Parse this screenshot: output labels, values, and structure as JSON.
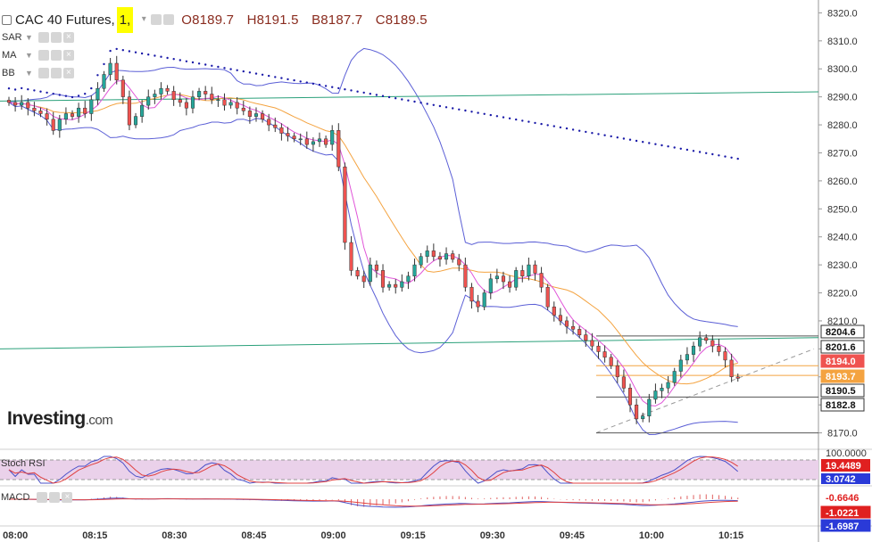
{
  "header": {
    "symbol": "CAC 40 Futures,",
    "timeframe": "1,",
    "open": "O8189.7",
    "high": "H8191.5",
    "low": "B8187.7",
    "close": "C8189.5"
  },
  "indicators": [
    "SAR",
    "MA",
    "BB"
  ],
  "logo": {
    "name": "Investing",
    "suffix": ".com"
  },
  "subpanes": {
    "stoch_rsi": "Stoch RSI",
    "macd": "MACD"
  },
  "colors": {
    "bull": "#26a69a",
    "bear": "#ef5350",
    "bb": "#5b5fd6",
    "sar": "#1a1aa8",
    "ma_fast": "#e055d8",
    "ma_slow": "#f4a340",
    "trend": "#2aa07a"
  },
  "chart_data": {
    "type": "candlestick",
    "x_ticks": [
      "08:00",
      "08:15",
      "08:30",
      "08:45",
      "09:00",
      "09:15",
      "09:30",
      "09:45",
      "10:00",
      "10:15"
    ],
    "y_ticks": [
      8320.0,
      8310.0,
      8300.0,
      8290.0,
      8280.0,
      8270.0,
      8260.0,
      8250.0,
      8240.0,
      8230.0,
      8220.0,
      8210.0,
      8200.0,
      8190.0,
      8180.0,
      8170.0
    ],
    "ylim": [
      8167,
      8323
    ],
    "series_close": [
      8288,
      8287,
      8288,
      8286,
      8285,
      8284,
      8282,
      8278,
      8282,
      8284,
      8283,
      8286,
      8284,
      8289,
      8293,
      8298,
      8302,
      8296,
      8290,
      8280,
      8283,
      8287,
      8290,
      8291,
      8293,
      8292,
      8289,
      8288,
      8286,
      8290,
      8292,
      8291,
      8289,
      8289,
      8287,
      8288,
      8286,
      8285,
      8283,
      8284,
      8282,
      8280,
      8279,
      8277,
      8276,
      8275,
      8275,
      8273,
      8274,
      8275,
      8273,
      8278,
      8265,
      8238,
      8228,
      8226,
      8224,
      8230,
      8228,
      8222,
      8223,
      8222,
      8224,
      8226,
      8230,
      8233,
      8235,
      8233,
      8232,
      8234,
      8232,
      8230,
      8222,
      8217,
      8215,
      8220,
      8225,
      8226,
      8224,
      8222,
      8228,
      8226,
      8230,
      8227,
      8222,
      8215,
      8212,
      8210,
      8208,
      8207,
      8205,
      8203,
      8201,
      8199,
      8197,
      8194,
      8190,
      8186,
      8180,
      8175,
      8176,
      8182,
      8185,
      8186,
      8188,
      8192,
      8196,
      8198,
      8201,
      8204,
      8203,
      8201,
      8199,
      8196,
      8190,
      8189.5
    ],
    "overlays": [
      "Parabolic SAR",
      "Moving Average",
      "Bollinger Bands"
    ],
    "horizontal_lines": [
      8204.6,
      8194.0,
      8190.5,
      8182.8,
      8170.0
    ],
    "price_labels": [
      {
        "value": "8204.6",
        "color": "#ffffff"
      },
      {
        "value": "8201.6",
        "color": "#ffffff"
      },
      {
        "value": "8194.0",
        "color": "#ef5350"
      },
      {
        "value": "8193.7",
        "color": "#f4a340"
      },
      {
        "value": "8190.5",
        "color": "#ffffff"
      },
      {
        "value": "8182.8",
        "color": "#ffffff"
      }
    ],
    "stoch_rsi": {
      "ticks": [
        "100.0000"
      ],
      "labels": [
        "19.4489",
        "3.0742"
      ]
    },
    "macd": {
      "labels": [
        "-0.6646",
        "-1.0221",
        "-1.6987"
      ]
    }
  }
}
